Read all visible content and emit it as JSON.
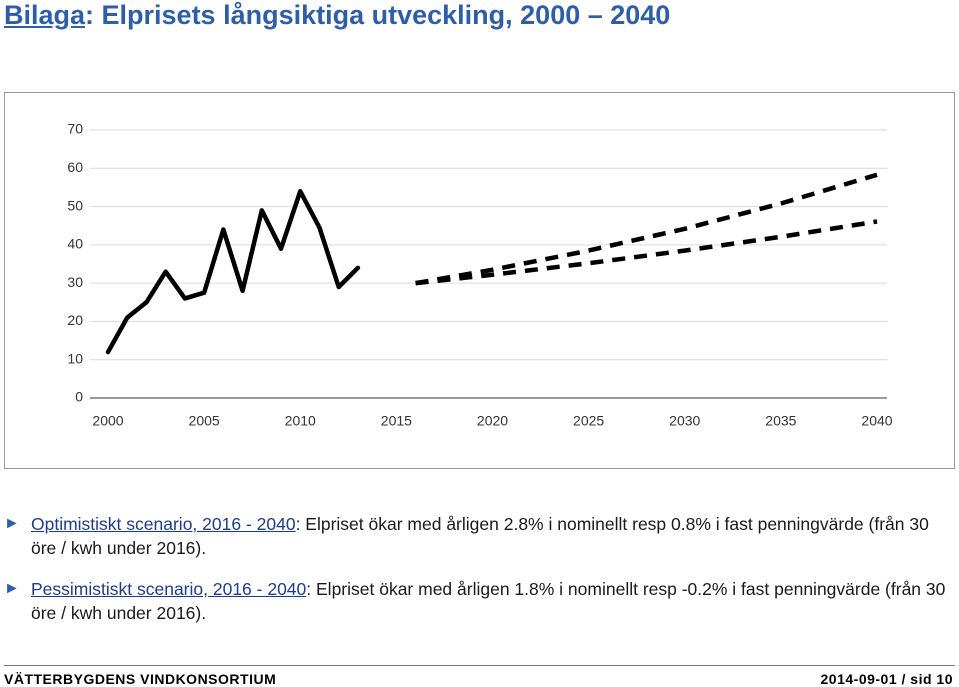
{
  "header": {
    "title_link": "Bilaga",
    "title_rest": ": Elprisets långsiktiga utveckling, 2000 – 2040"
  },
  "chart_data": {
    "type": "line",
    "xlim": [
      2000,
      2040
    ],
    "xticks": [
      2000,
      2005,
      2010,
      2015,
      2020,
      2025,
      2030,
      2035,
      2040
    ],
    "ylim": [
      0,
      70
    ],
    "yticks": [
      0,
      10,
      20,
      30,
      40,
      50,
      60,
      70
    ],
    "grid": true,
    "series": [
      {
        "color": "#000000",
        "dashed": false,
        "x": [
          2000,
          2001,
          2002,
          2003,
          2004,
          2005,
          2006,
          2007,
          2008,
          2009,
          2010,
          2011,
          2012,
          2013
        ],
        "values": [
          12,
          21,
          25,
          33,
          26,
          27.5,
          44,
          28,
          49,
          39,
          54,
          44.5,
          29,
          34
        ]
      },
      {
        "color": "#000000",
        "dashed": true,
        "x": [
          2016,
          2020,
          2025,
          2030,
          2035,
          2040
        ],
        "values": [
          30,
          33.5,
          38.5,
          44.2,
          50.8,
          58.3
        ]
      },
      {
        "color": "#000000",
        "dashed": true,
        "x": [
          2016,
          2020,
          2025,
          2030,
          2035,
          2040
        ],
        "values": [
          30,
          32.2,
          35.2,
          38.5,
          42.1,
          46.1
        ]
      }
    ]
  },
  "bullets": [
    {
      "link": "Optimistiskt scenario, 2016 - 2040",
      "text": ": Elpriset ökar med årligen 2.8% i nominellt resp 0.8% i fast penningvärde (från 30 öre / kwh under 2016)."
    },
    {
      "link": "Pessimistiskt scenario, 2016 - 2040",
      "text": ": Elpriset ökar med årligen 1.8% i nominellt resp -0.2% i fast penningvärde (från 30 öre / kwh under 2016)."
    }
  ],
  "footer": {
    "left": "VÄTTERBYGDENS VINDKONSORTIUM",
    "right": "2014-09-01 / sid 10"
  }
}
